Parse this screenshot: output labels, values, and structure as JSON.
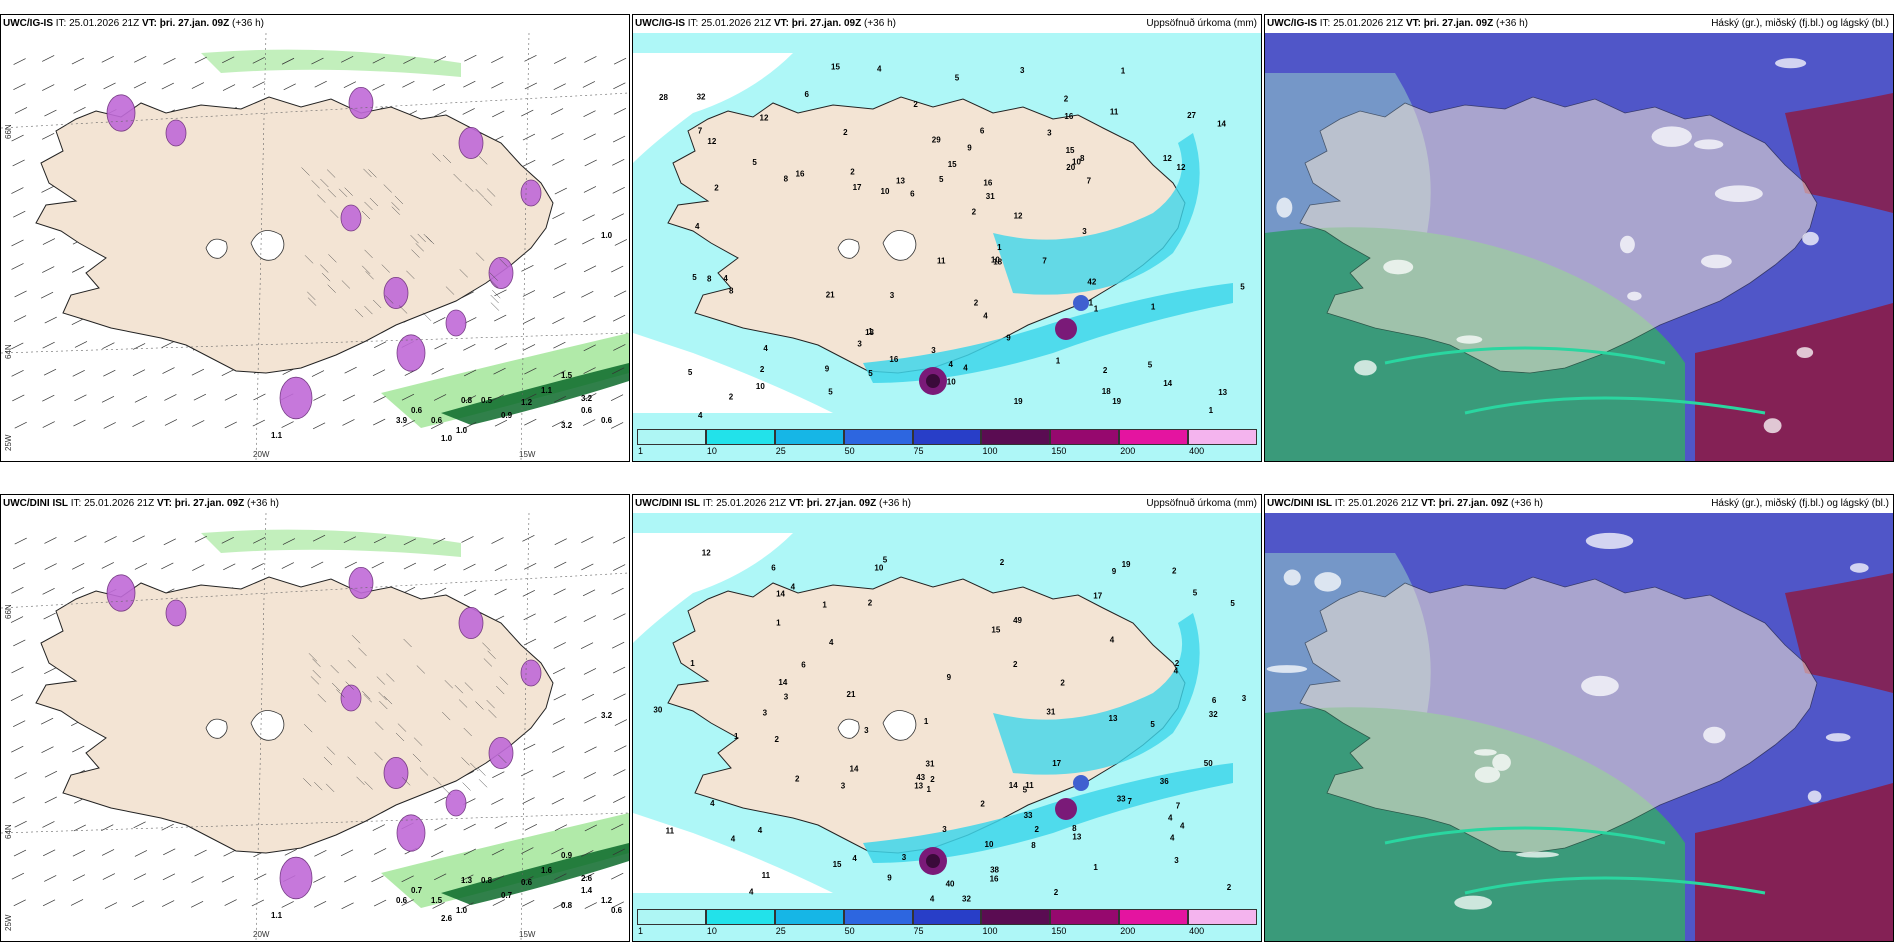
{
  "rows": [
    {
      "model_label": "UWC/IG-IS",
      "it_label": "IT:",
      "it_value": "25.01.2026 21Z",
      "vt_label": "VT:",
      "vt_value": "þri. 27.jan. 09Z",
      "lead": "(+36 h)",
      "precip_title": "Uppsöfnuð úrkoma (mm)",
      "cloud_title": "Háský (gr.), miðský (fj.bl.) og lágský (bl.)",
      "precip_values": [
        "2",
        "1",
        "1",
        "2",
        "2",
        "3",
        "5",
        "2",
        "2",
        "3",
        "1",
        "17",
        "16",
        "5",
        "1",
        "2",
        "1",
        "8",
        "11",
        "14",
        "28",
        "10",
        "10",
        "7",
        "1",
        "16",
        "13",
        "9",
        "12",
        "9",
        "14",
        "3",
        "6",
        "4",
        "10",
        "19",
        "4",
        "7",
        "2",
        "3",
        "8",
        "1",
        "2",
        "5",
        "3",
        "10",
        "15",
        "4",
        "5",
        "13",
        "12",
        "5",
        "32",
        "18",
        "4",
        "12",
        "12",
        "6",
        "12",
        "42",
        "31",
        "15",
        "10",
        "27",
        "19",
        "4",
        "1",
        "2",
        "5",
        "16",
        "16",
        "18",
        "2",
        "21",
        "9",
        "5",
        "3",
        "11",
        "29",
        "20",
        "13",
        "8",
        "8",
        "4",
        "6",
        "4",
        "5",
        "15",
        "7",
        "5",
        "4"
      ],
      "wave_labels": [
        "1.0",
        "3.2",
        "1.0",
        "3.2",
        "1.1",
        "1.0",
        "3.9",
        "0.8",
        "0.6",
        "0.6",
        "0.9",
        "0.5",
        "1.2",
        "1.1",
        "1.5",
        "0.6",
        "0.6"
      ],
      "lat_labels": [
        "66N",
        "64N",
        "25W"
      ],
      "lon_labels": [
        "20W",
        "15W"
      ]
    },
    {
      "model_label": "UWC/DINI ISL",
      "it_label": "IT:",
      "it_value": "25.01.2026 21Z",
      "vt_label": "VT:",
      "vt_value": "þri. 27.jan. 09Z",
      "lead": "(+36 h)",
      "precip_title": "Uppsöfnuð úrkoma (mm)",
      "cloud_title": "Háský (gr.), miðský (fj.bl.) og lágský (bl.)",
      "precip_values": [
        "2",
        "3",
        "2",
        "3",
        "3",
        "1",
        "4",
        "19",
        "32",
        "2",
        "6",
        "4",
        "2",
        "2",
        "1",
        "4",
        "1",
        "1",
        "3",
        "4",
        "3",
        "4",
        "14",
        "5",
        "2",
        "9",
        "7",
        "1",
        "4",
        "4",
        "5",
        "17",
        "8",
        "13",
        "15",
        "32",
        "30",
        "6",
        "9",
        "3",
        "6",
        "13",
        "4",
        "31",
        "5",
        "11",
        "2",
        "13",
        "50",
        "38",
        "33",
        "4",
        "17",
        "7",
        "4",
        "21",
        "15",
        "33",
        "36",
        "31",
        "40",
        "14",
        "49",
        "8",
        "4",
        "12",
        "2",
        "1",
        "14",
        "16",
        "43",
        "14",
        "11",
        "10",
        "9",
        "2",
        "11",
        "2",
        "10",
        "2",
        "2",
        "3",
        "4",
        "5",
        "5",
        "3",
        "1",
        "2",
        "4"
      ],
      "wave_labels": [
        "3.2",
        "2.6",
        "2.6",
        "0.8",
        "1.1",
        "1.0",
        "0.6",
        "1.3",
        "0.7",
        "1.5",
        "0.7",
        "0.8",
        "0.6",
        "1.6",
        "0.9",
        "1.4",
        "1.2",
        "0.6"
      ],
      "lat_labels": [
        "66N",
        "64N",
        "25W"
      ],
      "lon_labels": [
        "20W",
        "15W"
      ]
    }
  ],
  "legend": {
    "labels": [
      "1",
      "10",
      "25",
      "50",
      "75",
      "100",
      "150",
      "200",
      "400"
    ],
    "colors": [
      "#aef6f4",
      "#22e2ea",
      "#16b6e6",
      "#2d66e0",
      "#283ec8",
      "#5a0c52",
      "#96086e",
      "#e414a0",
      "#f4b4ee"
    ]
  },
  "colors": {
    "land": "#f3e4d4",
    "sea_precip": "#aef7f7",
    "cloud_high": "#5056c8",
    "cloud_mid": "#3a9a7a",
    "cloud_low": "#8a1c48",
    "precip_shade": "#c06ad8",
    "wave_green": "#a8e8a0",
    "wave_dark": "#0c6a2a"
  }
}
